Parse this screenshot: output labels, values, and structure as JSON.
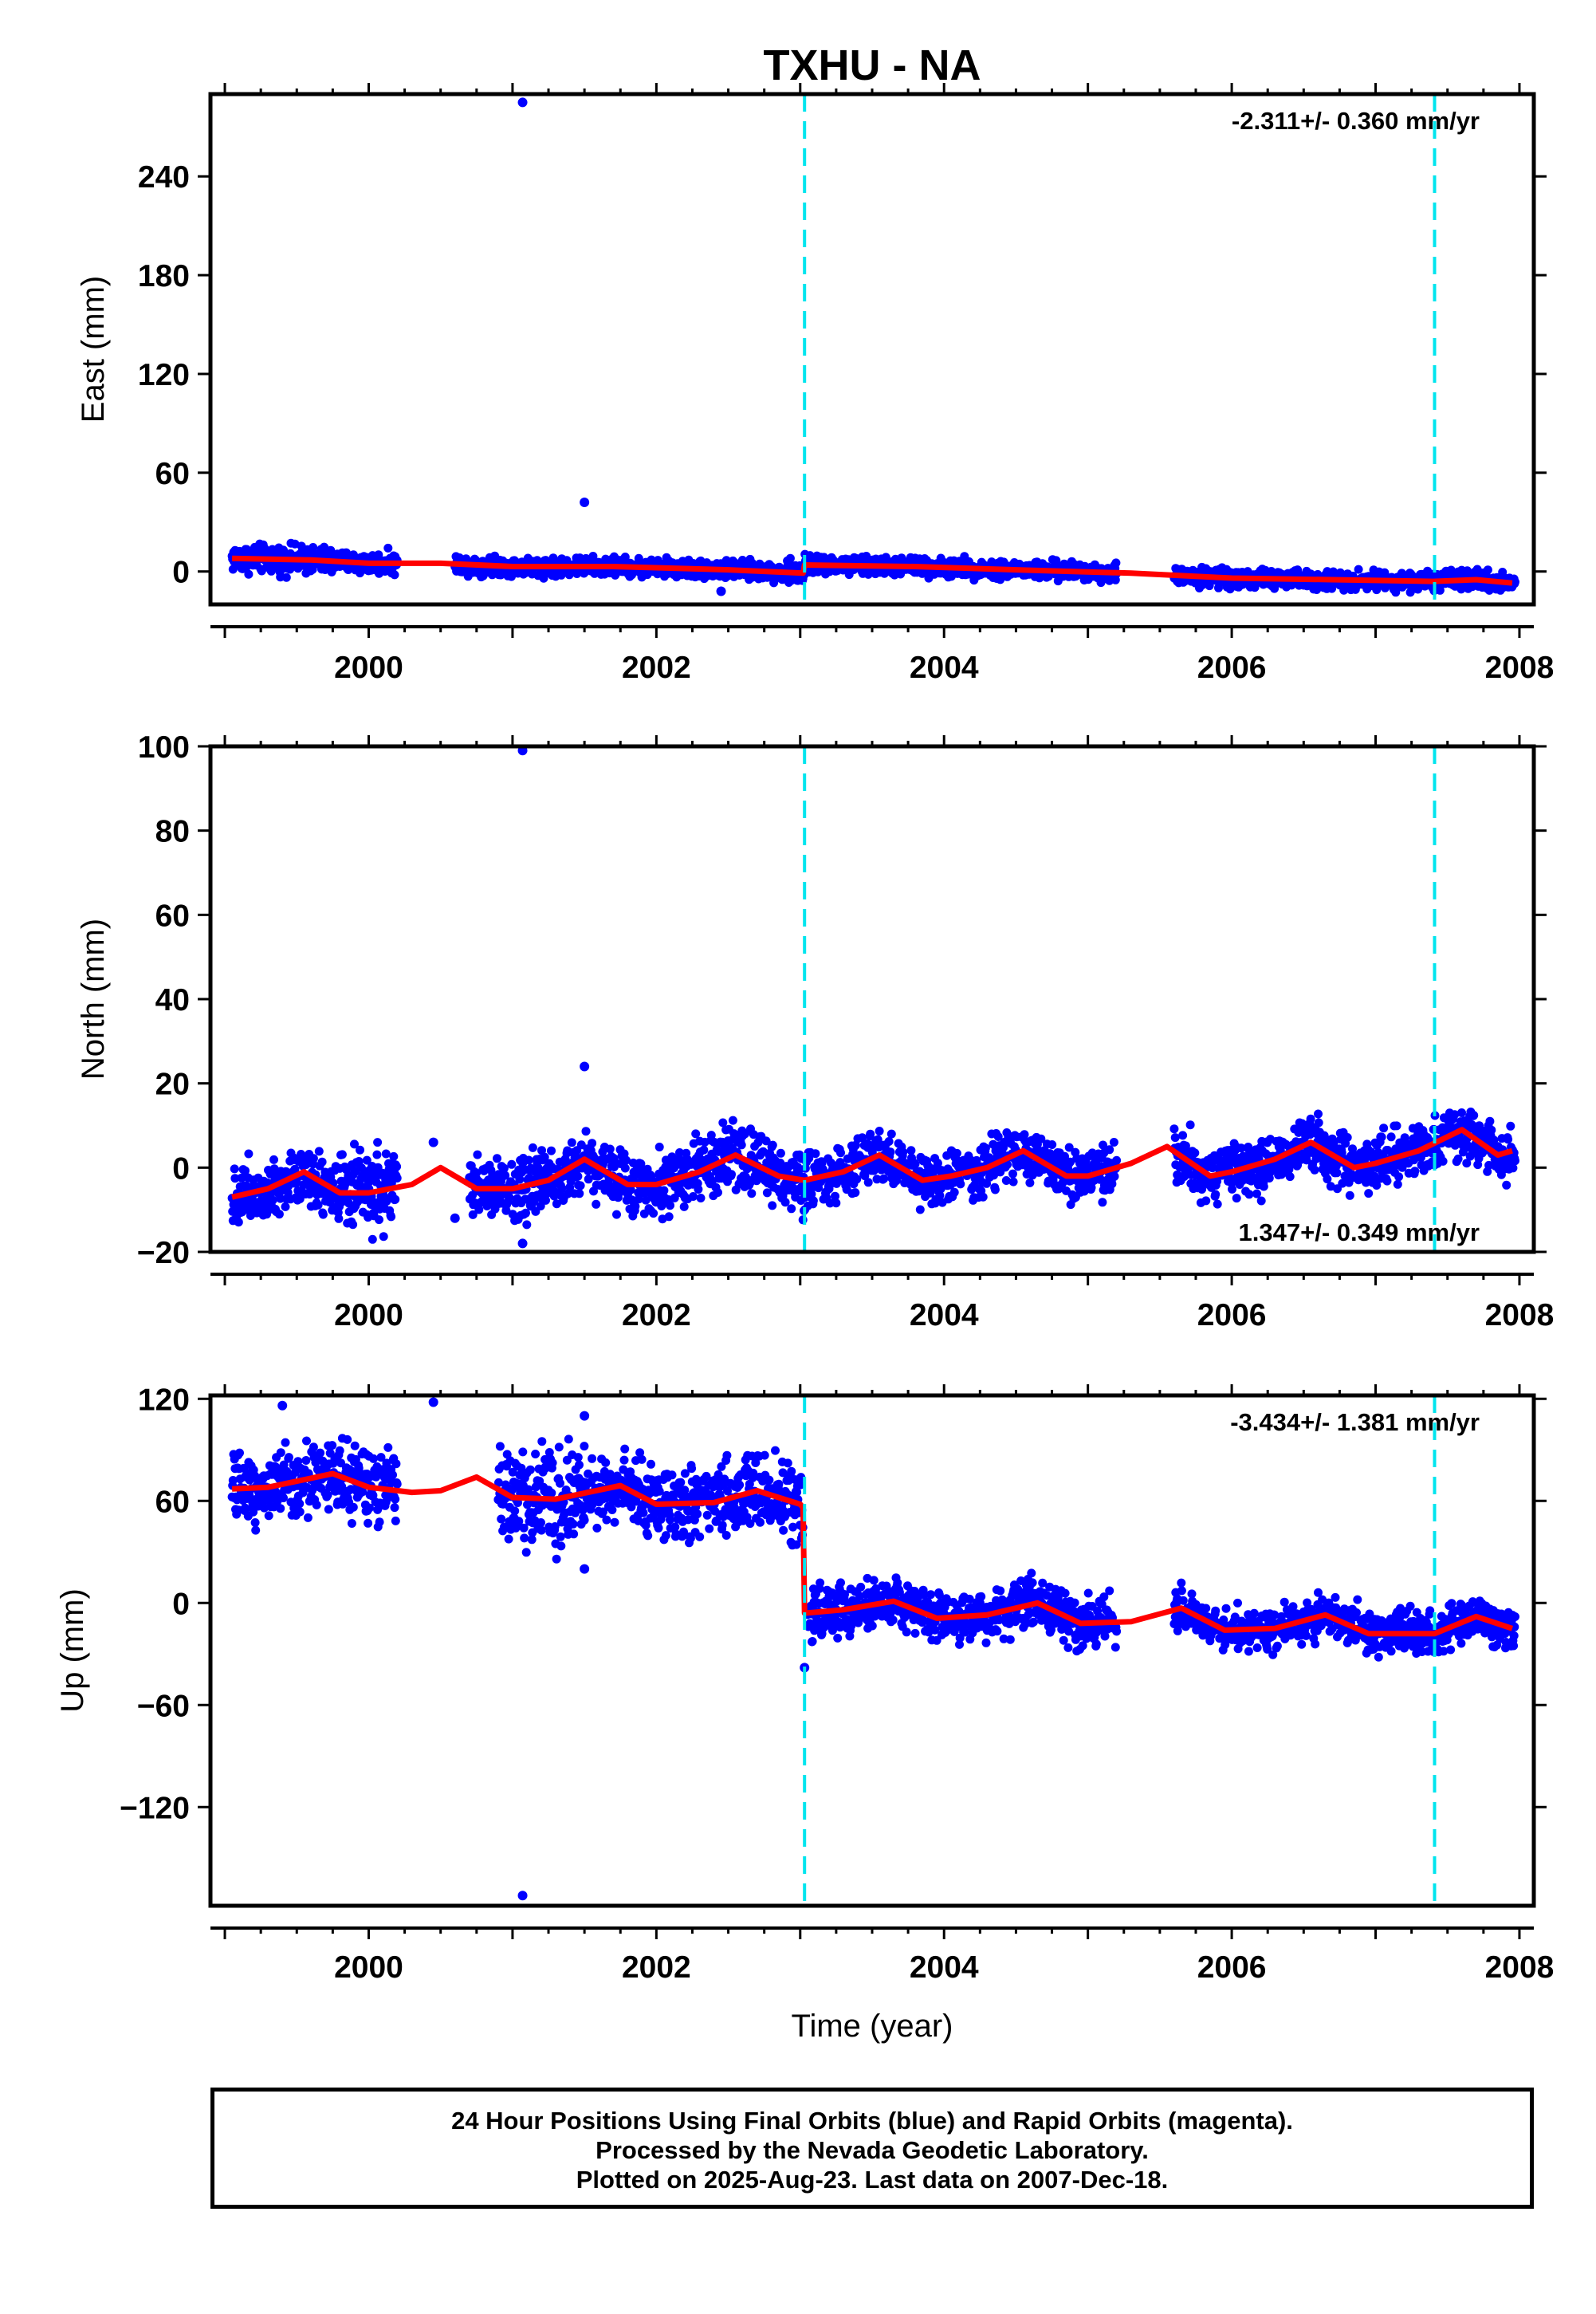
{
  "title": "TXHU - NA",
  "colors": {
    "points": "#0000ff",
    "model": "#ff0000",
    "events": "#00e5ee",
    "frame": "#000000"
  },
  "chart_data": [
    {
      "type": "scatter",
      "id": "east",
      "ylabel": "East (mm)",
      "xlabel": "",
      "xlim": [
        1998.9,
        2008.1
      ],
      "ylim": [
        -20,
        290
      ],
      "yticks": [
        0,
        60,
        120,
        180,
        240
      ],
      "xticks": [
        2000,
        2002,
        2004,
        2006,
        2008
      ],
      "event_lines_x": [
        2003.03,
        2007.41
      ],
      "rate_label": "-2.311+/- 0.360 mm/yr",
      "rate_label_position": "top-right",
      "outliers": [
        {
          "x": 2001.07,
          "y": 285
        },
        {
          "x": 2001.5,
          "y": 42
        },
        {
          "x": 2002.45,
          "y": -12
        }
      ],
      "model": [
        [
          1999.05,
          8
        ],
        [
          1999.6,
          7
        ],
        [
          2000.0,
          5
        ],
        [
          2000.5,
          5
        ],
        [
          2001.0,
          3
        ],
        [
          2001.7,
          3
        ],
        [
          2002.5,
          1
        ],
        [
          2003.02,
          -1
        ],
        [
          2003.03,
          4
        ],
        [
          2003.8,
          3
        ],
        [
          2004.5,
          1
        ],
        [
          2005.3,
          -1
        ],
        [
          2006.0,
          -4
        ],
        [
          2006.7,
          -5
        ],
        [
          2007.4,
          -6
        ],
        [
          2007.7,
          -5
        ],
        [
          2007.95,
          -7
        ]
      ],
      "noise": [
        {
          "from": 1999.05,
          "to": 1999.75,
          "spread": 9
        },
        {
          "from": 1999.75,
          "to": 2000.2,
          "spread": 7
        },
        {
          "from": 2000.6,
          "to": 2001.15,
          "spread": 6
        },
        {
          "from": 2001.15,
          "to": 2002.9,
          "spread": 6
        },
        {
          "from": 2002.9,
          "to": 2003.05,
          "spread": 8
        },
        {
          "from": 2003.05,
          "to": 2005.2,
          "spread": 6
        },
        {
          "from": 2005.6,
          "to": 2007.0,
          "spread": 6
        },
        {
          "from": 2007.0,
          "to": 2007.97,
          "spread": 6
        }
      ]
    },
    {
      "type": "scatter",
      "id": "north",
      "ylabel": "North (mm)",
      "xlabel": "",
      "xlim": [
        1998.9,
        2008.1
      ],
      "ylim": [
        -20,
        100
      ],
      "yticks": [
        -20,
        0,
        20,
        40,
        60,
        80,
        100
      ],
      "xticks": [
        2000,
        2002,
        2004,
        2006,
        2008
      ],
      "event_lines_x": [
        2003.03,
        2007.41
      ],
      "rate_label": "1.347+/- 0.349 mm/yr",
      "rate_label_position": "bottom-right",
      "outliers": [
        {
          "x": 2001.07,
          "y": 99
        },
        {
          "x": 2001.07,
          "y": -18
        },
        {
          "x": 2001.5,
          "y": 24
        },
        {
          "x": 2000.45,
          "y": 6
        },
        {
          "x": 2000.6,
          "y": -12
        }
      ],
      "model": [
        [
          1999.05,
          -7
        ],
        [
          1999.3,
          -5
        ],
        [
          1999.55,
          -1
        ],
        [
          1999.8,
          -6
        ],
        [
          2000.0,
          -6
        ],
        [
          2000.3,
          -4
        ],
        [
          2000.5,
          0
        ],
        [
          2000.75,
          -5
        ],
        [
          2001.0,
          -5
        ],
        [
          2001.25,
          -3
        ],
        [
          2001.5,
          2
        ],
        [
          2001.8,
          -4
        ],
        [
          2002.0,
          -4
        ],
        [
          2002.3,
          -1
        ],
        [
          2002.55,
          3
        ],
        [
          2002.85,
          -2
        ],
        [
          2003.03,
          -3
        ],
        [
          2003.3,
          -1
        ],
        [
          2003.55,
          3
        ],
        [
          2003.85,
          -3
        ],
        [
          2004.05,
          -2
        ],
        [
          2004.3,
          0
        ],
        [
          2004.55,
          4
        ],
        [
          2004.85,
          -2
        ],
        [
          2005.0,
          -2
        ],
        [
          2005.3,
          1
        ],
        [
          2005.55,
          5
        ],
        [
          2005.85,
          -2
        ],
        [
          2006.0,
          -1
        ],
        [
          2006.3,
          2
        ],
        [
          2006.55,
          6
        ],
        [
          2006.85,
          0
        ],
        [
          2007.0,
          1
        ],
        [
          2007.3,
          4
        ],
        [
          2007.6,
          9
        ],
        [
          2007.85,
          3
        ],
        [
          2007.95,
          4
        ]
      ],
      "noise": [
        {
          "from": 1999.05,
          "to": 1999.75,
          "spread": 8
        },
        {
          "from": 1999.75,
          "to": 2000.2,
          "spread": 10
        },
        {
          "from": 2000.7,
          "to": 2001.15,
          "spread": 8
        },
        {
          "from": 2001.15,
          "to": 2003.05,
          "spread": 8
        },
        {
          "from": 2003.05,
          "to": 2005.2,
          "spread": 7
        },
        {
          "from": 2005.6,
          "to": 2007.97,
          "spread": 7
        }
      ]
    },
    {
      "type": "scatter",
      "id": "up",
      "ylabel": "Up (mm)",
      "xlabel": "Time (year)",
      "xlim": [
        1998.9,
        2008.1
      ],
      "ylim": [
        -178,
        122
      ],
      "yticks": [
        -120,
        -60,
        0,
        60,
        120
      ],
      "xticks": [
        2000,
        2002,
        2004,
        2006,
        2008
      ],
      "event_lines_x": [
        2003.03,
        2007.41
      ],
      "rate_label": "-3.434+/- 1.381 mm/yr",
      "rate_label_position": "top-right",
      "outliers": [
        {
          "x": 2001.07,
          "y": -172
        },
        {
          "x": 1999.4,
          "y": 116
        },
        {
          "x": 2000.45,
          "y": 118
        },
        {
          "x": 2001.5,
          "y": 110
        },
        {
          "x": 2001.5,
          "y": 20
        },
        {
          "x": 2003.03,
          "y": -38
        }
      ],
      "model": [
        [
          1999.05,
          67
        ],
        [
          1999.3,
          68
        ],
        [
          1999.75,
          76
        ],
        [
          2000.0,
          68
        ],
        [
          2000.3,
          65
        ],
        [
          2000.5,
          66
        ],
        [
          2000.75,
          74
        ],
        [
          2001.0,
          62
        ],
        [
          2001.3,
          61
        ],
        [
          2001.75,
          69
        ],
        [
          2002.0,
          58
        ],
        [
          2002.4,
          59
        ],
        [
          2002.7,
          66
        ],
        [
          2003.0,
          58
        ],
        [
          2003.02,
          56
        ],
        [
          2003.03,
          -6
        ],
        [
          2003.3,
          -4
        ],
        [
          2003.65,
          1
        ],
        [
          2003.95,
          -9
        ],
        [
          2004.3,
          -7
        ],
        [
          2004.65,
          0
        ],
        [
          2004.95,
          -12
        ],
        [
          2005.3,
          -11
        ],
        [
          2005.65,
          -3
        ],
        [
          2005.95,
          -16
        ],
        [
          2006.3,
          -15
        ],
        [
          2006.65,
          -7
        ],
        [
          2006.95,
          -18
        ],
        [
          2007.41,
          -18
        ],
        [
          2007.7,
          -8
        ],
        [
          2007.95,
          -15
        ]
      ],
      "noise": [
        {
          "from": 1999.05,
          "to": 2000.2,
          "spread": 22
        },
        {
          "from": 2000.9,
          "to": 2001.5,
          "spread": 30
        },
        {
          "from": 2001.5,
          "to": 2003.02,
          "spread": 24
        },
        {
          "from": 2003.05,
          "to": 2005.2,
          "spread": 16
        },
        {
          "from": 2005.6,
          "to": 2007.97,
          "spread": 14
        }
      ]
    }
  ],
  "footer": {
    "line1": "24 Hour Positions Using Final Orbits (blue) and Rapid Orbits (magenta).",
    "line2": "Processed by the Nevada Geodetic Laboratory.",
    "line3": "Plotted on 2025-Aug-23. Last data on 2007-Dec-18."
  }
}
